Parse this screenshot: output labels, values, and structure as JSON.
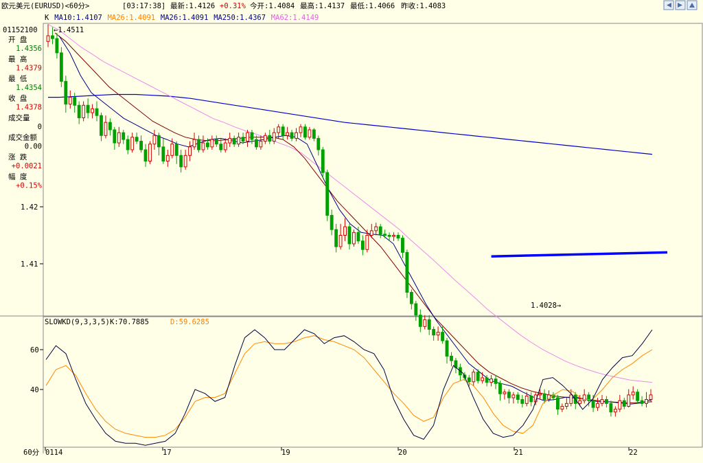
{
  "header": {
    "title": "欧元美元(EURUSD)<60分>",
    "time": "[03:17:38]",
    "latest": "最新:1.4126",
    "change": "+0.31%",
    "open_today": "今开:1.4084",
    "high": "最高:1.4137",
    "low": "最低:1.4066",
    "prev_close": "昨收:1.4083"
  },
  "ma_legend": [
    {
      "text": "K",
      "color": "#000000"
    },
    {
      "text": "MA10:1.4107",
      "color": "#000080"
    },
    {
      "text": "MA26:1.4091",
      "color": "#ff8000"
    },
    {
      "text": "MA26:1.4091",
      "color": "#000080"
    },
    {
      "text": "MA250:1.4367",
      "color": "#000080"
    },
    {
      "text": "MA62:1.4149",
      "color": "#e060e0"
    }
  ],
  "info_panel": {
    "code": "01152100",
    "rows": [
      {
        "label": "开  盘",
        "value": "1.4356",
        "color": "#008000"
      },
      {
        "label": "最  高",
        "value": "1.4379",
        "color": "#d00000"
      },
      {
        "label": "最  低",
        "value": "1.4354",
        "color": "#008000"
      },
      {
        "label": "收  盘",
        "value": "1.4378",
        "color": "#d00000"
      },
      {
        "label": "成交量",
        "value": "0",
        "color": "#000000"
      },
      {
        "label": "成交金额",
        "value": "0.00",
        "color": "#000000"
      },
      {
        "label": "涨  跌",
        "value": "+0.0021",
        "color": "#d00000"
      },
      {
        "label": "幅  度",
        "value": "+0.15%",
        "color": "#d00000"
      }
    ]
  },
  "kd_legend": {
    "name": "SLOWKD(9,3,3,5)",
    "k": "K:70.7885",
    "d": "D:59.6285"
  },
  "period_label": "60分",
  "nav_icons": [
    "arrow-left-icon",
    "arrow-right-icon",
    "arrow-up-icon",
    "arrow-down-icon"
  ],
  "chart_data": {
    "type": "candlestick",
    "price_axis": {
      "ticks": [
        1.42,
        1.41
      ],
      "tick_labels": [
        "1.42",
        "1.41"
      ]
    },
    "x_ticks": [
      "0114",
      "17",
      "19",
      "20",
      "21",
      "22"
    ],
    "annotations": [
      {
        "text": "1.4511",
        "type": "max_marker"
      },
      {
        "text": "1.4028",
        "type": "min_marker"
      }
    ],
    "candles": [
      [
        1.449,
        1.45,
        1.452,
        1.448
      ],
      [
        1.45,
        1.4495,
        1.4515,
        1.4485
      ],
      [
        1.4495,
        1.447,
        1.4505,
        1.446
      ],
      [
        1.447,
        1.442,
        1.448,
        1.441
      ],
      [
        1.442,
        1.438,
        1.443,
        1.4365
      ],
      [
        1.438,
        1.4392,
        1.4404,
        1.4372
      ],
      [
        1.4392,
        1.4378,
        1.44,
        1.4365
      ],
      [
        1.4378,
        1.4356,
        1.4385,
        1.4345
      ],
      [
        1.4356,
        1.4378,
        1.4385,
        1.435
      ],
      [
        1.4378,
        1.4365,
        1.439,
        1.4355
      ],
      [
        1.4365,
        1.4372,
        1.438,
        1.4355
      ],
      [
        1.4372,
        1.436,
        1.4385,
        1.435
      ],
      [
        1.436,
        1.4325,
        1.4365,
        1.4315
      ],
      [
        1.4325,
        1.4348,
        1.436,
        1.432
      ],
      [
        1.4348,
        1.4335,
        1.4355,
        1.4325
      ],
      [
        1.4335,
        1.4312,
        1.434,
        1.43
      ],
      [
        1.4312,
        1.433,
        1.434,
        1.4305
      ],
      [
        1.433,
        1.4318,
        1.4335,
        1.431
      ],
      [
        1.4318,
        1.43,
        1.4325,
        1.4292
      ],
      [
        1.43,
        1.4322,
        1.433,
        1.4295
      ],
      [
        1.4322,
        1.4315,
        1.433,
        1.431
      ],
      [
        1.4315,
        1.43,
        1.4325,
        1.4295
      ],
      [
        1.43,
        1.428,
        1.431,
        1.427
      ],
      [
        1.428,
        1.431,
        1.4315,
        1.4275
      ],
      [
        1.431,
        1.4325,
        1.4335,
        1.43
      ],
      [
        1.4325,
        1.4305,
        1.433,
        1.429
      ],
      [
        1.4305,
        1.428,
        1.432,
        1.4275
      ],
      [
        1.428,
        1.429,
        1.43,
        1.427
      ],
      [
        1.429,
        1.431,
        1.432,
        1.4285
      ],
      [
        1.431,
        1.429,
        1.4315,
        1.4275
      ],
      [
        1.429,
        1.427,
        1.43,
        1.426
      ],
      [
        1.427,
        1.429,
        1.43,
        1.4265
      ],
      [
        1.429,
        1.4305,
        1.4315,
        1.428
      ],
      [
        1.4305,
        1.4318,
        1.433,
        1.43
      ],
      [
        1.4318,
        1.43,
        1.4325,
        1.4295
      ],
      [
        1.43,
        1.4312,
        1.4325,
        1.4295
      ],
      [
        1.4312,
        1.4305,
        1.432,
        1.43
      ],
      [
        1.4305,
        1.4318,
        1.4325,
        1.43
      ],
      [
        1.4318,
        1.431,
        1.4325,
        1.4305
      ],
      [
        1.431,
        1.43,
        1.432,
        1.4295
      ],
      [
        1.43,
        1.4312,
        1.432,
        1.4295
      ],
      [
        1.4312,
        1.432,
        1.433,
        1.4305
      ],
      [
        1.432,
        1.431,
        1.4325,
        1.4305
      ],
      [
        1.431,
        1.4322,
        1.433,
        1.4305
      ],
      [
        1.4322,
        1.4315,
        1.433,
        1.431
      ],
      [
        1.4315,
        1.433,
        1.4335,
        1.4305
      ],
      [
        1.433,
        1.4318,
        1.4335,
        1.431
      ],
      [
        1.4318,
        1.4305,
        1.4325,
        1.43
      ],
      [
        1.4305,
        1.4315,
        1.4325,
        1.43
      ],
      [
        1.4315,
        1.4325,
        1.433,
        1.431
      ],
      [
        1.4325,
        1.4315,
        1.4335,
        1.431
      ],
      [
        1.4315,
        1.433,
        1.4338,
        1.431
      ],
      [
        1.433,
        1.434,
        1.4345,
        1.432
      ],
      [
        1.434,
        1.4325,
        1.4345,
        1.4318
      ],
      [
        1.4325,
        1.433,
        1.434,
        1.4318
      ],
      [
        1.433,
        1.432,
        1.4335,
        1.4315
      ],
      [
        1.432,
        1.433,
        1.4338,
        1.4315
      ],
      [
        1.433,
        1.434,
        1.4345,
        1.4322
      ],
      [
        1.434,
        1.4322,
        1.4345,
        1.4318
      ],
      [
        1.4322,
        1.4335,
        1.434,
        1.4318
      ],
      [
        1.4335,
        1.432,
        1.4338,
        1.4315
      ],
      [
        1.432,
        1.43,
        1.4325,
        1.429
      ],
      [
        1.43,
        1.426,
        1.4305,
        1.425
      ],
      [
        1.426,
        1.4185,
        1.4265,
        1.4175
      ],
      [
        1.4185,
        1.416,
        1.4195,
        1.415
      ],
      [
        1.416,
        1.413,
        1.417,
        1.412
      ],
      [
        1.413,
        1.415,
        1.417,
        1.4125
      ],
      [
        1.415,
        1.4165,
        1.418,
        1.414
      ],
      [
        1.4165,
        1.4135,
        1.417,
        1.4125
      ],
      [
        1.4135,
        1.4155,
        1.416,
        1.413
      ],
      [
        1.4155,
        1.414,
        1.4165,
        1.4135
      ],
      [
        1.414,
        1.4125,
        1.415,
        1.4115
      ],
      [
        1.4125,
        1.415,
        1.416,
        1.412
      ],
      [
        1.415,
        1.4158,
        1.417,
        1.4145
      ],
      [
        1.4158,
        1.4165,
        1.4172,
        1.415
      ],
      [
        1.4165,
        1.4152,
        1.417,
        1.4145
      ],
      [
        1.4152,
        1.415,
        1.416,
        1.4145
      ],
      [
        1.415,
        1.4148,
        1.4155,
        1.414
      ],
      [
        1.4148,
        1.415,
        1.4155,
        1.414
      ],
      [
        1.415,
        1.4145,
        1.4155,
        1.414
      ],
      [
        1.4145,
        1.412,
        1.415,
        1.411
      ],
      [
        1.412,
        1.405,
        1.4125,
        1.404
      ],
      [
        1.405,
        1.403,
        1.4055,
        1.402
      ],
      [
        1.403,
        1.401,
        1.4035,
        1.4
      ],
      [
        1.401,
        1.399,
        1.402,
        1.398
      ],
      [
        1.399,
        1.4002,
        1.401,
        1.3985
      ],
      [
        1.4002,
        1.3985,
        1.401,
        1.3975
      ],
      [
        1.3985,
        1.3975,
        1.399,
        1.3965
      ],
      [
        1.3975,
        1.398,
        1.399,
        1.3965
      ],
      [
        1.398,
        1.3965,
        1.399,
        1.396
      ],
      [
        1.3965,
        1.3938,
        1.397,
        1.3925
      ],
      [
        1.3938,
        1.393,
        1.3945,
        1.392
      ],
      [
        1.393,
        1.3918,
        1.3935,
        1.3908
      ],
      [
        1.3918,
        1.3905,
        1.3925,
        1.3895
      ],
      [
        1.3905,
        1.39,
        1.391,
        1.3895
      ],
      [
        1.39,
        1.3893,
        1.3905,
        1.3885
      ],
      [
        1.3893,
        1.391,
        1.3915,
        1.3885
      ],
      [
        1.391,
        1.3895,
        1.3915,
        1.389
      ],
      [
        1.3895,
        1.39,
        1.391,
        1.389
      ],
      [
        1.39,
        1.3892,
        1.3905,
        1.3885
      ],
      [
        1.3892,
        1.3898,
        1.3905,
        1.3885
      ],
      [
        1.3898,
        1.389,
        1.3905,
        1.388
      ],
      [
        1.389,
        1.3872,
        1.3895,
        1.386
      ],
      [
        1.3872,
        1.3875,
        1.388,
        1.3862
      ],
      [
        1.3875,
        1.3865,
        1.388,
        1.3855
      ],
      [
        1.3865,
        1.387,
        1.3875,
        1.3855
      ],
      [
        1.387,
        1.3862,
        1.3875,
        1.3855
      ],
      [
        1.3862,
        1.3855,
        1.387,
        1.3848
      ],
      [
        1.3855,
        1.3868,
        1.3875,
        1.385
      ],
      [
        1.3868,
        1.3858,
        1.3875,
        1.385
      ],
      [
        1.3858,
        1.387,
        1.3875,
        1.3852
      ],
      [
        1.387,
        1.3872,
        1.388,
        1.3862
      ],
      [
        1.3872,
        1.3862,
        1.388,
        1.3855
      ],
      [
        1.3862,
        1.387,
        1.3878,
        1.3858
      ],
      [
        1.387,
        1.3865,
        1.3875,
        1.386
      ],
      [
        1.3865,
        1.3845,
        1.387,
        1.3835
      ],
      [
        1.3845,
        1.385,
        1.3855,
        1.384
      ],
      [
        1.385,
        1.3855,
        1.3865,
        1.3845
      ],
      [
        1.3855,
        1.387,
        1.388,
        1.385
      ],
      [
        1.387,
        1.3855,
        1.3875,
        1.3845
      ],
      [
        1.3855,
        1.386,
        1.387,
        1.385
      ],
      [
        1.386,
        1.387,
        1.388,
        1.3855
      ],
      [
        1.387,
        1.386,
        1.3875,
        1.385
      ],
      [
        1.386,
        1.3848,
        1.387,
        1.384
      ],
      [
        1.3848,
        1.3855,
        1.3865,
        1.3842
      ],
      [
        1.3855,
        1.3862,
        1.387,
        1.385
      ],
      [
        1.3862,
        1.3855,
        1.3868,
        1.3848
      ],
      [
        1.3855,
        1.384,
        1.386,
        1.3832
      ],
      [
        1.384,
        1.3845,
        1.385,
        1.3832
      ],
      [
        1.3845,
        1.386,
        1.387,
        1.384
      ],
      [
        1.386,
        1.385,
        1.3865,
        1.3845
      ],
      [
        1.385,
        1.387,
        1.388,
        1.3848
      ],
      [
        1.387,
        1.3875,
        1.3885,
        1.3862
      ],
      [
        1.3875,
        1.386,
        1.388,
        1.3855
      ],
      [
        1.386,
        1.3855,
        1.3868,
        1.385
      ],
      [
        1.3855,
        1.3862,
        1.3875,
        1.3848
      ],
      [
        1.3862,
        1.387,
        1.388,
        1.3858
      ]
    ],
    "ma10": [
      1.45,
      1.447,
      1.443,
      1.44,
      1.4385,
      1.437,
      1.4355,
      1.4345,
      1.4335,
      1.4325,
      1.4318,
      1.431,
      1.4305,
      1.4312,
      1.4318,
      1.432,
      1.4316,
      1.4312,
      1.4315,
      1.4318,
      1.4322,
      1.4325,
      1.4322,
      1.431,
      1.427,
      1.423,
      1.4195,
      1.417,
      1.4155,
      1.4152,
      1.415,
      1.4135,
      1.41,
      1.4065,
      1.403,
      1.4,
      1.3975,
      1.395,
      1.3925,
      1.391,
      1.3895,
      1.389,
      1.3885,
      1.3875,
      1.3866,
      1.386,
      1.3862,
      1.3866,
      1.3866,
      1.3862,
      1.3858,
      1.3858,
      1.3856,
      1.3854,
      1.3856,
      1.3862
    ],
    "ma26": [
      1.4505,
      1.449,
      1.447,
      1.445,
      1.443,
      1.441,
      1.4395,
      1.438,
      1.4365,
      1.435,
      1.434,
      1.433,
      1.4322,
      1.4318,
      1.4316,
      1.4316,
      1.4318,
      1.432,
      1.4322,
      1.4322,
      1.4322,
      1.4318,
      1.4305,
      1.4285,
      1.426,
      1.4235,
      1.421,
      1.419,
      1.417,
      1.415,
      1.413,
      1.4105,
      1.408,
      1.4055,
      1.403,
      1.4005,
      1.3985,
      1.3965,
      1.3945,
      1.3925,
      1.391,
      1.39,
      1.389,
      1.3882,
      1.3876,
      1.3872,
      1.3868,
      1.3866,
      1.3864,
      1.3862,
      1.386,
      1.3858,
      1.3857,
      1.3856,
      1.3857,
      1.3858
    ],
    "ma62": [
      1.452,
      1.451,
      1.4495,
      1.448,
      1.4468,
      1.4455,
      1.4445,
      1.4435,
      1.4425,
      1.4415,
      1.4405,
      1.4395,
      1.4385,
      1.4375,
      1.4365,
      1.4355,
      1.4348,
      1.434,
      1.4333,
      1.4327,
      1.432,
      1.4312,
      1.4305,
      1.4295,
      1.428,
      1.4265,
      1.425,
      1.4235,
      1.422,
      1.4205,
      1.419,
      1.4175,
      1.416,
      1.4142,
      1.4125,
      1.4108,
      1.409,
      1.4072,
      1.4055,
      1.4038,
      1.402,
      1.4005,
      1.399,
      1.3975,
      1.3962,
      1.395,
      1.394,
      1.393,
      1.3922,
      1.3915,
      1.3909,
      1.3904,
      1.39,
      1.3896,
      1.3894,
      1.3892
    ],
    "ma250": [
      1.4392,
      1.4392,
      1.4393,
      1.4394,
      1.4395,
      1.4396,
      1.4397,
      1.4397,
      1.4397,
      1.4396,
      1.4395,
      1.4394,
      1.4392,
      1.439,
      1.4387,
      1.4384,
      1.4381,
      1.4378,
      1.4375,
      1.4372,
      1.4369,
      1.4366,
      1.4363,
      1.436,
      1.4357,
      1.4354,
      1.4351,
      1.4348,
      1.4346,
      1.4344,
      1.4342,
      1.434,
      1.4338,
      1.4336,
      1.4334,
      1.4332,
      1.433,
      1.4328,
      1.4326,
      1.4324,
      1.4322,
      1.432,
      1.4318,
      1.4316,
      1.4314,
      1.4312,
      1.431,
      1.4308,
      1.4306,
      1.4304,
      1.4302,
      1.43,
      1.4298,
      1.4296,
      1.4294,
      1.4292
    ],
    "trendline": {
      "from_index": 100,
      "to_index": 140,
      "from_value": 1.4113,
      "to_value": 1.412
    },
    "kd": {
      "y_ticks": [
        60,
        40
      ],
      "k": [
        55,
        62,
        58,
        45,
        33,
        25,
        18,
        14,
        13,
        13,
        12,
        13,
        14,
        18,
        28,
        40,
        38,
        34,
        36,
        52,
        66,
        70,
        66,
        60,
        60,
        65,
        70,
        68,
        63,
        66,
        67,
        64,
        60,
        58,
        50,
        35,
        25,
        17,
        15,
        22,
        40,
        52,
        48,
        36,
        25,
        18,
        16,
        17,
        22,
        30,
        45,
        46,
        42,
        37,
        30,
        35,
        45,
        51,
        56,
        57,
        63,
        70
      ],
      "d": [
        42,
        50,
        52,
        47,
        38,
        30,
        24,
        20,
        18,
        17,
        16,
        16,
        17,
        20,
        26,
        34,
        36,
        36,
        38,
        48,
        58,
        63,
        64,
        63,
        63,
        64,
        66,
        67,
        65,
        64,
        62,
        60,
        56,
        50,
        44,
        38,
        33,
        27,
        24,
        26,
        36,
        43,
        45,
        42,
        36,
        28,
        22,
        19,
        18,
        22,
        33,
        37,
        40,
        39,
        35,
        35,
        40,
        46,
        50,
        53,
        57,
        60
      ]
    },
    "colors": {
      "up": "#d00000",
      "down": "#00a000",
      "ma10": "#000080",
      "ma26": "#800000",
      "ma62": "#ee88ee",
      "ma250": "#0000cc",
      "trend": "#0000ff",
      "k": "#000040",
      "d": "#ff8800"
    }
  }
}
